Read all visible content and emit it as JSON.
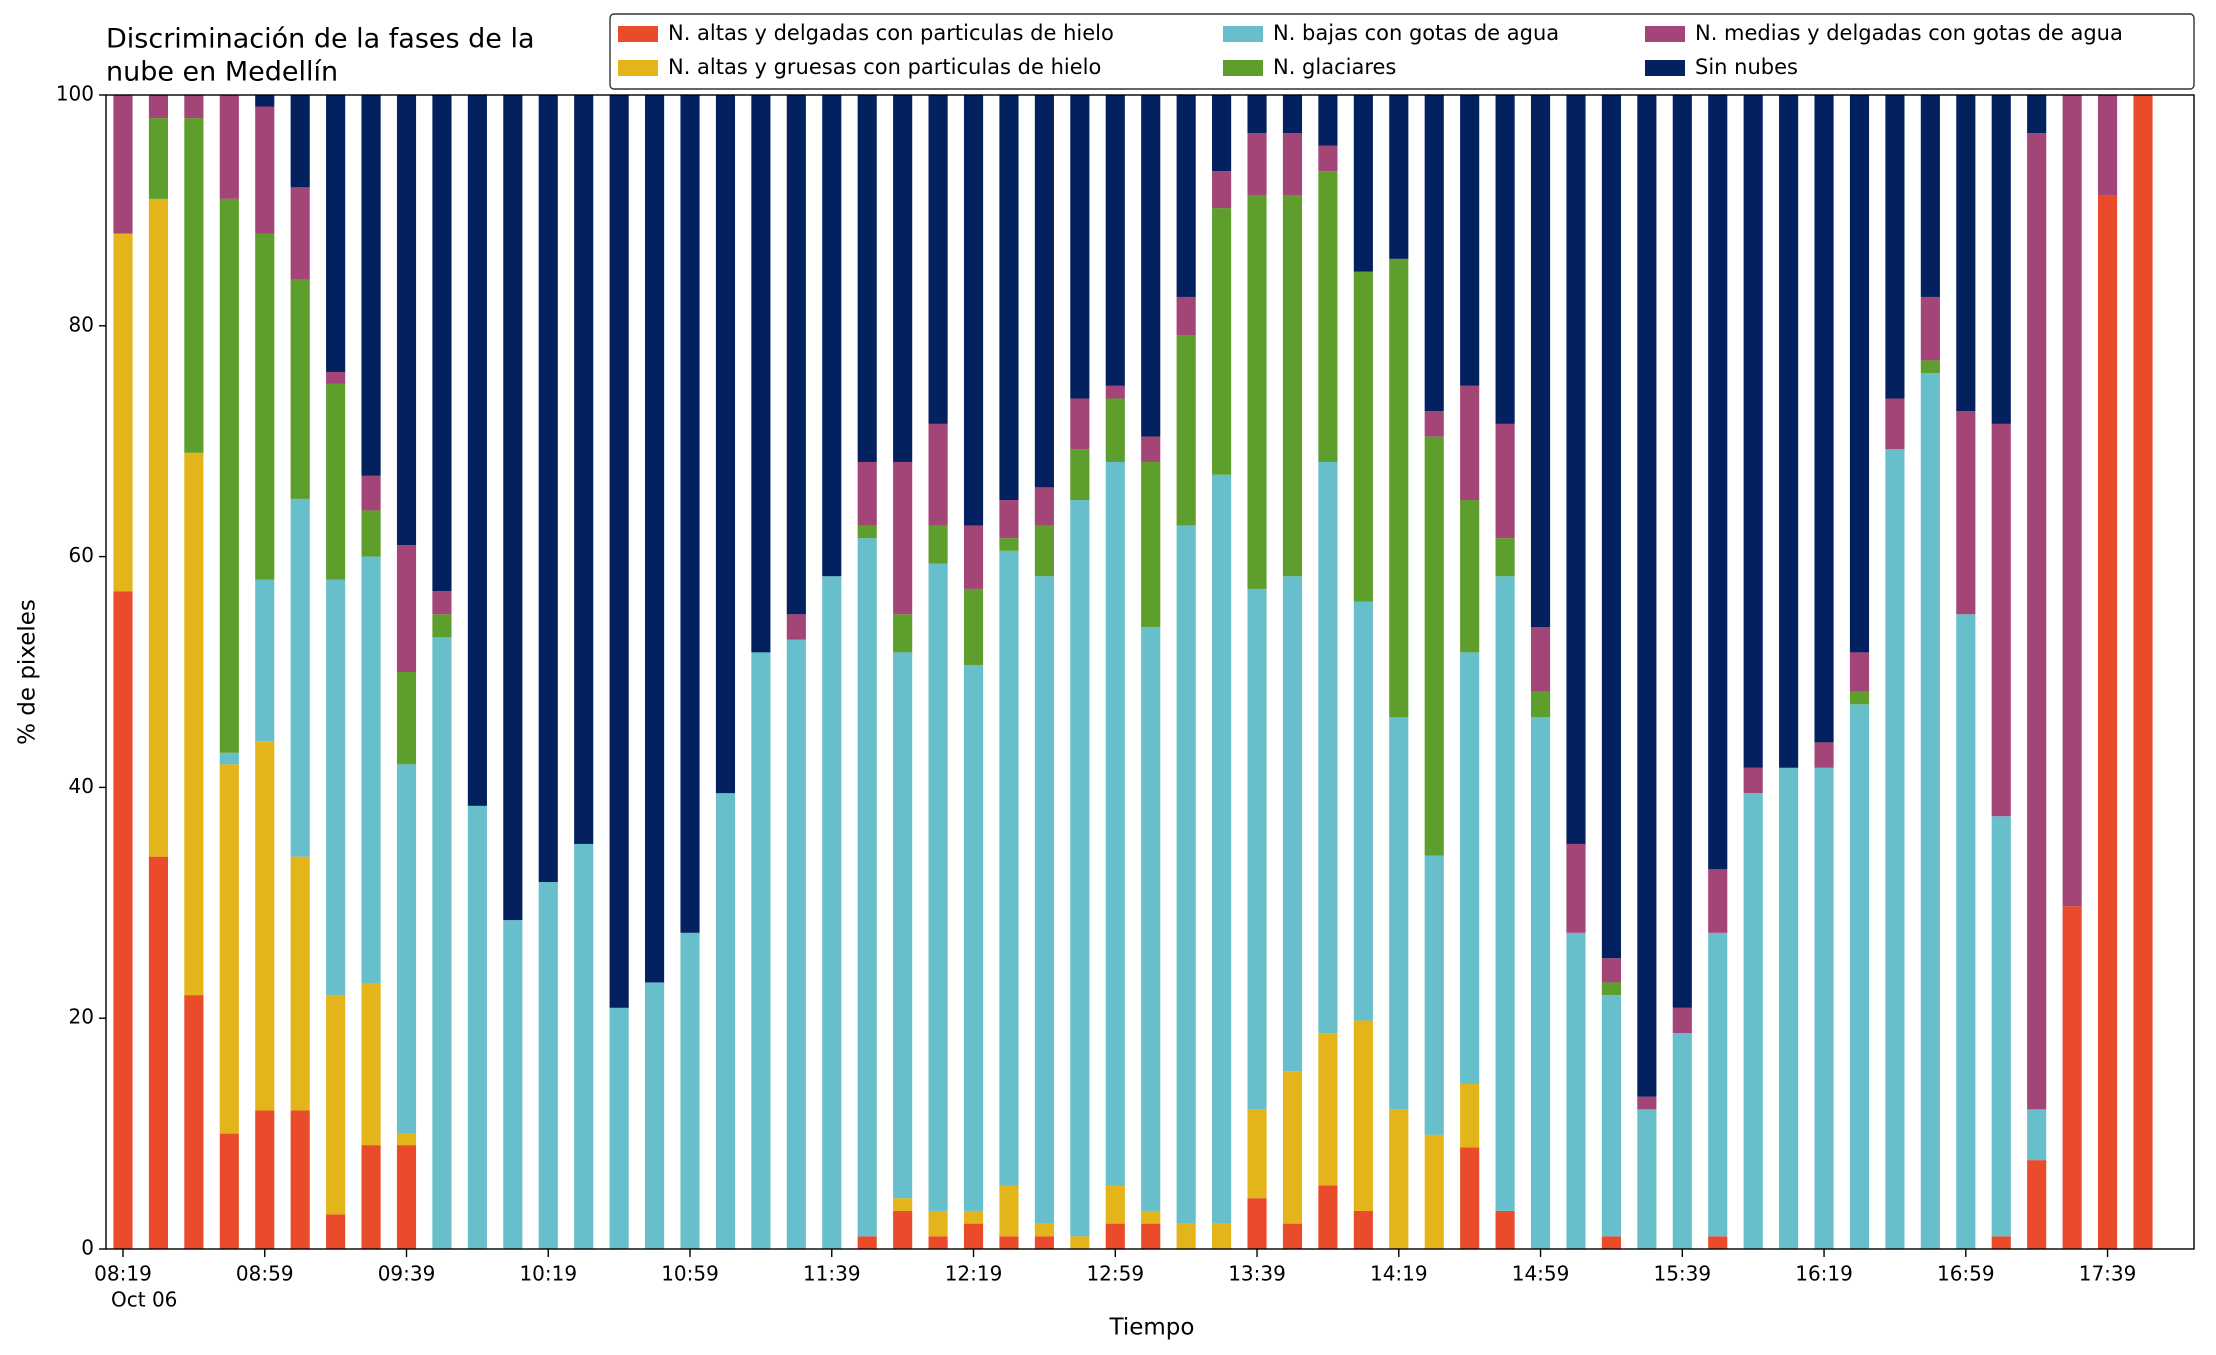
{
  "chart_data": {
    "type": "stacked_bar",
    "title": [
      "Discriminación de la fases de la",
      "nube en Medellín"
    ],
    "x_label": "Tiempo",
    "y_label": "% de pixeles",
    "categories": [
      "08:19",
      null,
      null,
      null,
      "08:59",
      null,
      null,
      null,
      "09:39",
      null,
      null,
      null,
      "10:19",
      null,
      null,
      null,
      "10:59",
      null,
      null,
      null,
      "11:39",
      null,
      null,
      null,
      "12:19",
      null,
      null,
      null,
      "12:59",
      null,
      null,
      null,
      "13:39",
      null,
      null,
      null,
      "14:19",
      null,
      null,
      null,
      "14:59",
      null,
      null,
      null,
      "15:39",
      null,
      null,
      null,
      "16:19",
      null,
      null,
      null,
      "16:59",
      null,
      null,
      null,
      "17:39",
      null
    ],
    "x_sublabel": "Oct 06",
    "ylim": [
      0,
      100
    ],
    "yticks": [
      0,
      20,
      40,
      60,
      80,
      100
    ],
    "legend": "upper right",
    "legend_columns": 3,
    "series": [
      {
        "name": "N. altas y delgadas con particulas de hielo",
        "color": "#e94b2b",
        "values": [
          57,
          34,
          22,
          10,
          12,
          12,
          3,
          9,
          9,
          0,
          0,
          0,
          0,
          0,
          0,
          0,
          0,
          0,
          0,
          0,
          0,
          1.1,
          3.3,
          1.1,
          2.2,
          1.1,
          1.1,
          0,
          2.2,
          2.2,
          0,
          0,
          4.4,
          2.2,
          5.5,
          3.3,
          0,
          0,
          8.8,
          3.3,
          0,
          0,
          1.1,
          0,
          0,
          1.1,
          0,
          0,
          0,
          0,
          0,
          0,
          0,
          1.1,
          7.7,
          29.7,
          91.3,
          100
        ]
      },
      {
        "name": "N. altas y gruesas con particulas de hielo",
        "color": "#e3b51b",
        "values": [
          31,
          57,
          47,
          32,
          32,
          22,
          19,
          14,
          1,
          0,
          0,
          0,
          0,
          0,
          0,
          0,
          0,
          0,
          0,
          0,
          0,
          0,
          1.1,
          2.2,
          1.1,
          4.4,
          1.1,
          1.1,
          3.3,
          1.1,
          2.2,
          2.2,
          7.7,
          13.2,
          13.2,
          16.5,
          12.1,
          9.9,
          5.5,
          0,
          0,
          0,
          0,
          0,
          0,
          0,
          0,
          0,
          0,
          0,
          0,
          0,
          0,
          0,
          0,
          0,
          0,
          0
        ]
      },
      {
        "name": "N. bajas con gotas de agua",
        "color": "#67bfcb",
        "values": [
          0,
          0,
          0,
          1,
          14,
          31,
          36,
          37,
          32,
          53,
          38.4,
          28.5,
          31.8,
          35.1,
          20.9,
          23.1,
          27.4,
          39.5,
          51.7,
          52.8,
          58.3,
          60.5,
          47.3,
          56.1,
          47.3,
          55,
          56.1,
          63.8,
          62.7,
          50.6,
          60.5,
          64.9,
          45.1,
          42.9,
          49.5,
          36.3,
          34,
          24.2,
          37.4,
          55,
          46.1,
          27.4,
          20.9,
          12.1,
          18.7,
          26.3,
          39.5,
          41.7,
          41.7,
          47.2,
          69.3,
          75.9,
          55,
          36.4,
          4.4,
          0,
          0,
          0
        ]
      },
      {
        "name": "N. glaciares",
        "color": "#5d9e2c",
        "values": [
          0,
          7,
          29,
          48,
          30,
          19,
          17,
          4,
          8,
          2,
          0,
          0,
          0,
          0,
          0,
          0,
          0,
          0,
          0,
          0,
          0,
          1.1,
          3.3,
          3.3,
          6.6,
          1.1,
          4.4,
          4.4,
          5.5,
          14.3,
          16.5,
          23.1,
          34.1,
          33,
          25.2,
          28.6,
          39.7,
          36.3,
          13.2,
          3.3,
          2.2,
          0,
          1.1,
          0,
          0,
          0,
          0,
          0,
          0,
          1.1,
          0,
          1.1,
          0,
          0,
          0,
          0,
          0,
          0
        ]
      },
      {
        "name": "N. medias y delgadas con gotas de agua",
        "color": "#a34577",
        "values": [
          12,
          2,
          2,
          9,
          11,
          8,
          1,
          3,
          11,
          2,
          0,
          0,
          0,
          0,
          0,
          0,
          0,
          0,
          0,
          2.2,
          0,
          5.5,
          13.2,
          8.8,
          5.5,
          3.3,
          3.3,
          4.4,
          1.1,
          2.2,
          3.3,
          3.2,
          5.4,
          5.4,
          2.2,
          0,
          0,
          2.2,
          9.9,
          9.9,
          5.6,
          7.7,
          2.1,
          1.1,
          2.2,
          5.5,
          2.2,
          0,
          2.2,
          3.4,
          4.4,
          5.5,
          17.6,
          34,
          84.6,
          70.3,
          8.7,
          0
        ]
      },
      {
        "name": "Sin nubes",
        "color": "#03205f",
        "values": [
          0,
          0,
          0,
          0,
          1,
          8,
          24,
          33,
          39,
          43,
          61.6,
          71.5,
          68.2,
          64.9,
          79.1,
          76.9,
          72.6,
          60.5,
          48.3,
          45,
          41.7,
          31.8,
          31.8,
          28.5,
          37.3,
          35.1,
          34,
          26.3,
          25.2,
          29.6,
          17.5,
          6.6,
          3.3,
          3.3,
          4.4,
          15.3,
          14.2,
          27.4,
          25.2,
          28.5,
          46.1,
          64.9,
          74.8,
          86.8,
          79.1,
          67.1,
          58.3,
          58.3,
          56.1,
          48.3,
          26.3,
          17.5,
          27.4,
          28.5,
          3.3,
          0,
          0,
          0
        ]
      }
    ]
  }
}
